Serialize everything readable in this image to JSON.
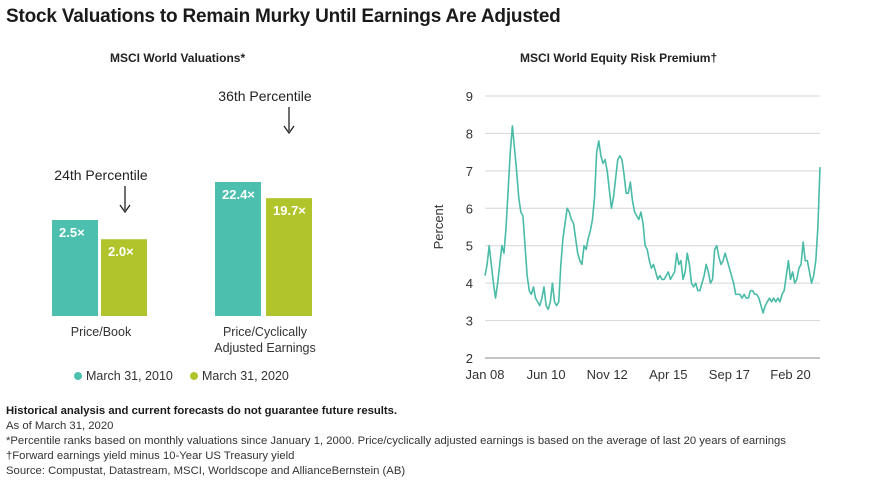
{
  "title": "Stock Valuations to Remain Murky Until Earnings Are Adjusted",
  "colors": {
    "teal": "#4dbfaf",
    "green": "#b2c42c",
    "line": "#49bba7",
    "grid": "#d6d6d6",
    "axis": "#888888"
  },
  "chart_data": [
    {
      "type": "bar",
      "title": "MSCI World Valuations*",
      "categories": [
        "Price/Book",
        "Price/Cyclically Adjusted Earnings"
      ],
      "series": [
        {
          "name": "March 31, 2010",
          "values": [
            2.5,
            22.4
          ],
          "labels": [
            "2.5×",
            "22.4×"
          ]
        },
        {
          "name": "March 31, 2020",
          "values": [
            2.0,
            19.7
          ],
          "labels": [
            "2.0×",
            "19.7×"
          ]
        }
      ],
      "annotations": [
        "24th Percentile",
        "36th Percentile"
      ],
      "legend": "bottom"
    },
    {
      "type": "line",
      "title": "MSCI World Equity Risk Premium†",
      "ylabel": "Percent",
      "ylim": [
        2,
        9
      ],
      "yticks": [
        "2",
        "3",
        "4",
        "5",
        "6",
        "7",
        "8",
        "9"
      ],
      "xticks": [
        "Jan 08",
        "Jun 10",
        "Nov 12",
        "Apr 15",
        "Sep 17",
        "Feb 20"
      ],
      "grid": true,
      "series": [
        {
          "x_start": "2008-01",
          "frequency": "monthly",
          "values": [
            4.2,
            4.5,
            5.0,
            4.5,
            4.0,
            3.6,
            4.0,
            4.5,
            5.0,
            4.8,
            5.5,
            6.5,
            7.5,
            8.2,
            7.6,
            7.0,
            6.3,
            5.9,
            5.8,
            5.0,
            4.2,
            3.8,
            3.7,
            3.9,
            3.6,
            3.5,
            3.4,
            3.6,
            3.9,
            3.4,
            3.3,
            3.5,
            4.0,
            3.5,
            3.4,
            3.5,
            4.5,
            5.2,
            5.6,
            6.0,
            5.9,
            5.7,
            5.6,
            5.2,
            4.8,
            4.6,
            4.5,
            5.0,
            4.9,
            5.2,
            5.4,
            5.7,
            6.3,
            7.5,
            7.8,
            7.4,
            7.2,
            7.3,
            7.0,
            6.5,
            6.0,
            6.3,
            6.8,
            7.3,
            7.4,
            7.3,
            6.9,
            6.4,
            6.4,
            6.7,
            6.2,
            5.9,
            5.8,
            5.7,
            5.9,
            5.6,
            5.0,
            4.9,
            4.6,
            4.4,
            4.5,
            4.3,
            4.1,
            4.2,
            4.1,
            4.1,
            4.2,
            4.3,
            4.1,
            4.2,
            4.3,
            4.8,
            4.5,
            4.6,
            4.1,
            4.3,
            4.8,
            4.5,
            4.0,
            3.9,
            4.0,
            3.8,
            3.8,
            4.0,
            4.2,
            4.5,
            4.3,
            4.0,
            4.1,
            4.9,
            5.0,
            4.7,
            4.5,
            4.6,
            4.8,
            4.6,
            4.4,
            4.2,
            4.0,
            3.7,
            3.7,
            3.7,
            3.6,
            3.7,
            3.6,
            3.6,
            3.8,
            3.8,
            3.7,
            3.7,
            3.6,
            3.4,
            3.2,
            3.4,
            3.5,
            3.6,
            3.5,
            3.6,
            3.5,
            3.6,
            3.5,
            3.7,
            3.8,
            4.2,
            4.6,
            4.1,
            4.3,
            4.0,
            4.1,
            4.4,
            4.5,
            5.1,
            4.6,
            4.6,
            4.3,
            4.0,
            4.2,
            4.6,
            5.5,
            7.1
          ]
        }
      ]
    }
  ],
  "footer": {
    "disclaimer": "Historical analysis and current forecasts do not guarantee future results.",
    "asof": "As of March 31, 2020",
    "note1": "*Percentile ranks based on monthly valuations since January 1, 2000. Price/cyclically adjusted earnings is based on the average of last 20 years of earnings",
    "note2": "†Forward earnings yield minus 10-Year US Treasury yield",
    "source": "Source: Compustat, Datastream, MSCI, Worldscope and AllianceBernstein (AB)"
  }
}
